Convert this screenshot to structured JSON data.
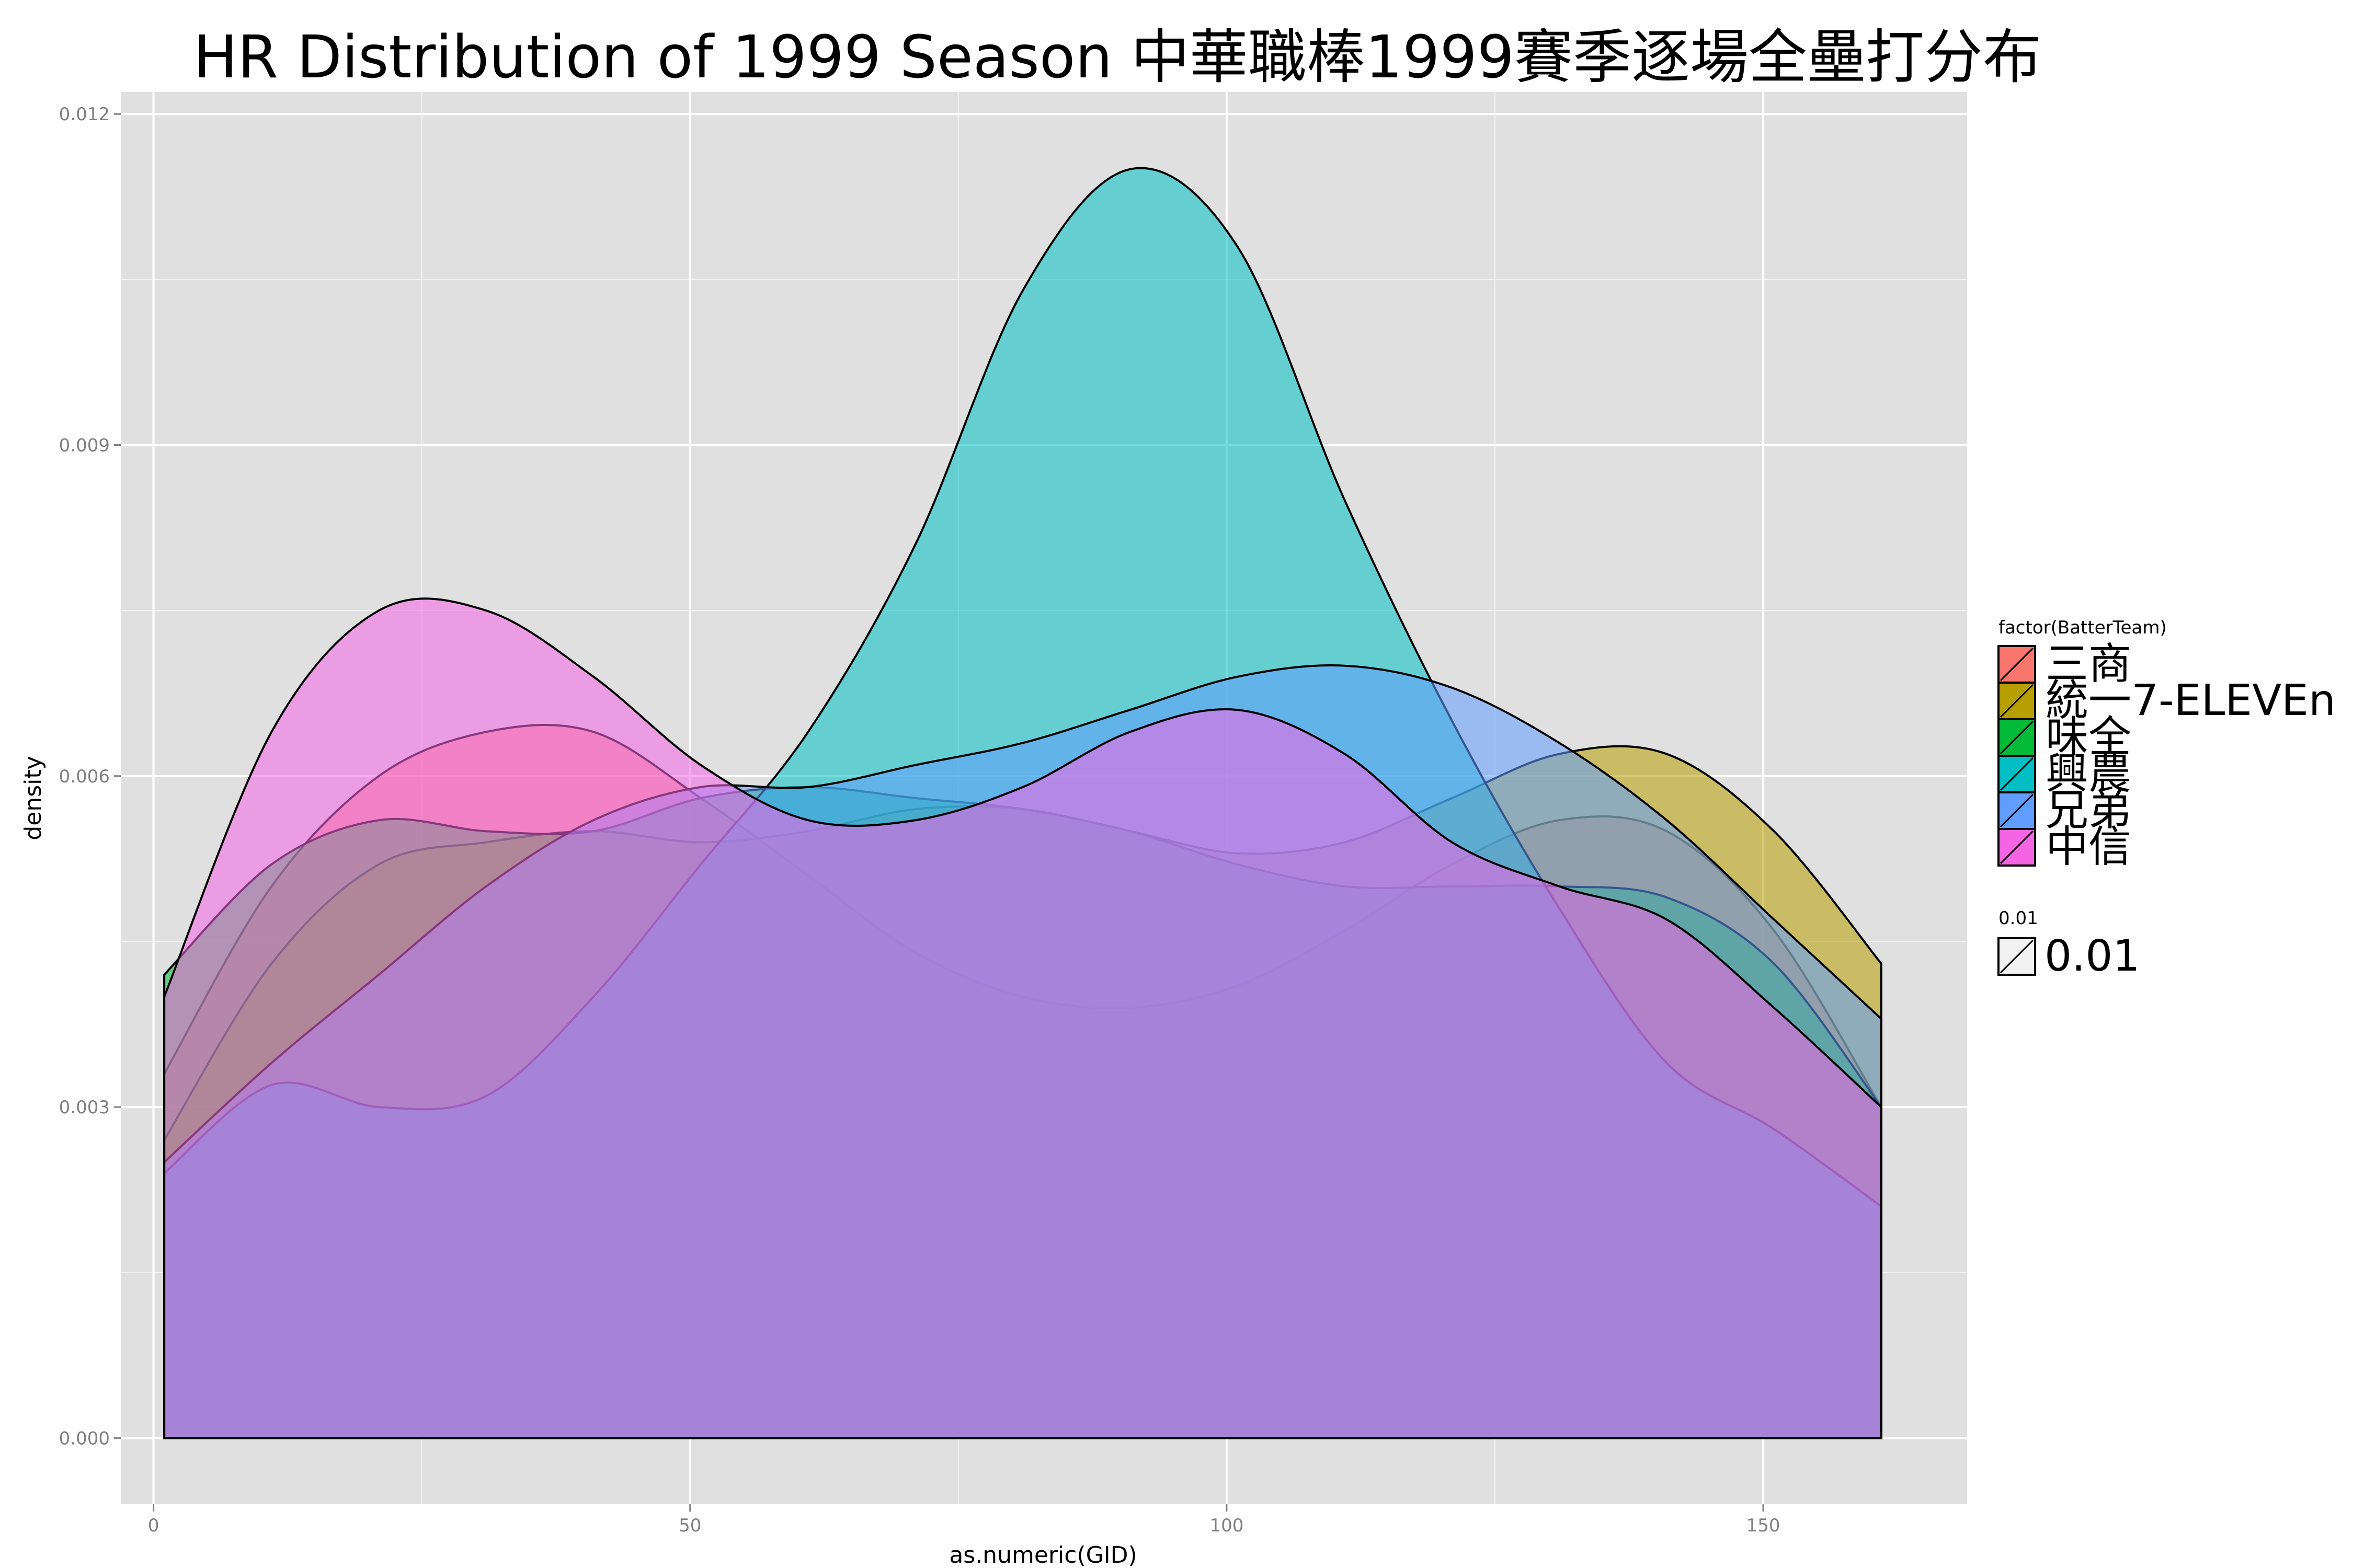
{
  "chart_data": {
    "type": "area",
    "title": "HR Distribution of 1999 Season 中華職棒1999賽季逐場全壘打分布",
    "xlabel": "as.numeric(GID)",
    "ylabel": "density",
    "xlim": [
      -3,
      169
    ],
    "ylim": [
      -0.0006,
      0.0122
    ],
    "x_ticks": [
      0,
      50,
      100,
      150
    ],
    "x_tick_labels": [
      "0",
      "50",
      "100",
      "150"
    ],
    "y_ticks": [
      0.0,
      0.003,
      0.006,
      0.009,
      0.012
    ],
    "y_tick_labels": [
      "0.000",
      "0.003",
      "0.006",
      "0.009",
      "0.012"
    ],
    "grid": true,
    "background": "#e0e0e0",
    "fill_alpha": 0.55,
    "legend": {
      "position": "right",
      "title": "factor(BatterTeam)",
      "alpha_title": "0.01",
      "alpha_label": "0.01"
    },
    "x": [
      1,
      11,
      21,
      31,
      41,
      51,
      61,
      71,
      81,
      91,
      101,
      111,
      121,
      131,
      141,
      151,
      161
    ],
    "series": [
      {
        "name": "三商",
        "color": "#f8766d",
        "values": [
          0.0033,
          0.005,
          0.006,
          0.0064,
          0.0064,
          0.0058,
          0.0051,
          0.0044,
          0.004,
          0.0039,
          0.0041,
          0.0046,
          0.0052,
          0.0056,
          0.0055,
          0.0046,
          0.003
        ]
      },
      {
        "name": "統一7-ELEVEn",
        "color": "#b79f00",
        "values": [
          0.0027,
          0.0043,
          0.0052,
          0.0054,
          0.0055,
          0.0054,
          0.0055,
          0.0057,
          0.0057,
          0.0055,
          0.0053,
          0.0054,
          0.0058,
          0.0062,
          0.0062,
          0.0055,
          0.0043
        ]
      },
      {
        "name": "味全",
        "color": "#00ba38",
        "values": [
          0.0042,
          0.0052,
          0.0056,
          0.0055,
          0.0055,
          0.0058,
          0.0059,
          0.0058,
          0.0057,
          0.0055,
          0.0052,
          0.005,
          0.005,
          0.005,
          0.0049,
          0.0043,
          0.003
        ]
      },
      {
        "name": "興農",
        "color": "#00bfc4",
        "values": [
          0.0024,
          0.0032,
          0.003,
          0.0031,
          0.004,
          0.0052,
          0.0064,
          0.0081,
          0.0104,
          0.0115,
          0.0108,
          0.0085,
          0.0065,
          0.0048,
          0.0034,
          0.0028,
          0.0021
        ]
      },
      {
        "name": "兄弟",
        "color": "#619cff",
        "values": [
          0.0025,
          0.0034,
          0.0042,
          0.005,
          0.0056,
          0.0059,
          0.0059,
          0.0061,
          0.0063,
          0.0066,
          0.0069,
          0.007,
          0.0068,
          0.0063,
          0.0056,
          0.0047,
          0.0038
        ]
      },
      {
        "name": "中信",
        "color": "#f564e3",
        "values": [
          0.004,
          0.0064,
          0.0075,
          0.0075,
          0.0069,
          0.0061,
          0.0056,
          0.0056,
          0.0059,
          0.0064,
          0.0066,
          0.0062,
          0.0054,
          0.005,
          0.0047,
          0.0039,
          0.003
        ]
      }
    ]
  }
}
